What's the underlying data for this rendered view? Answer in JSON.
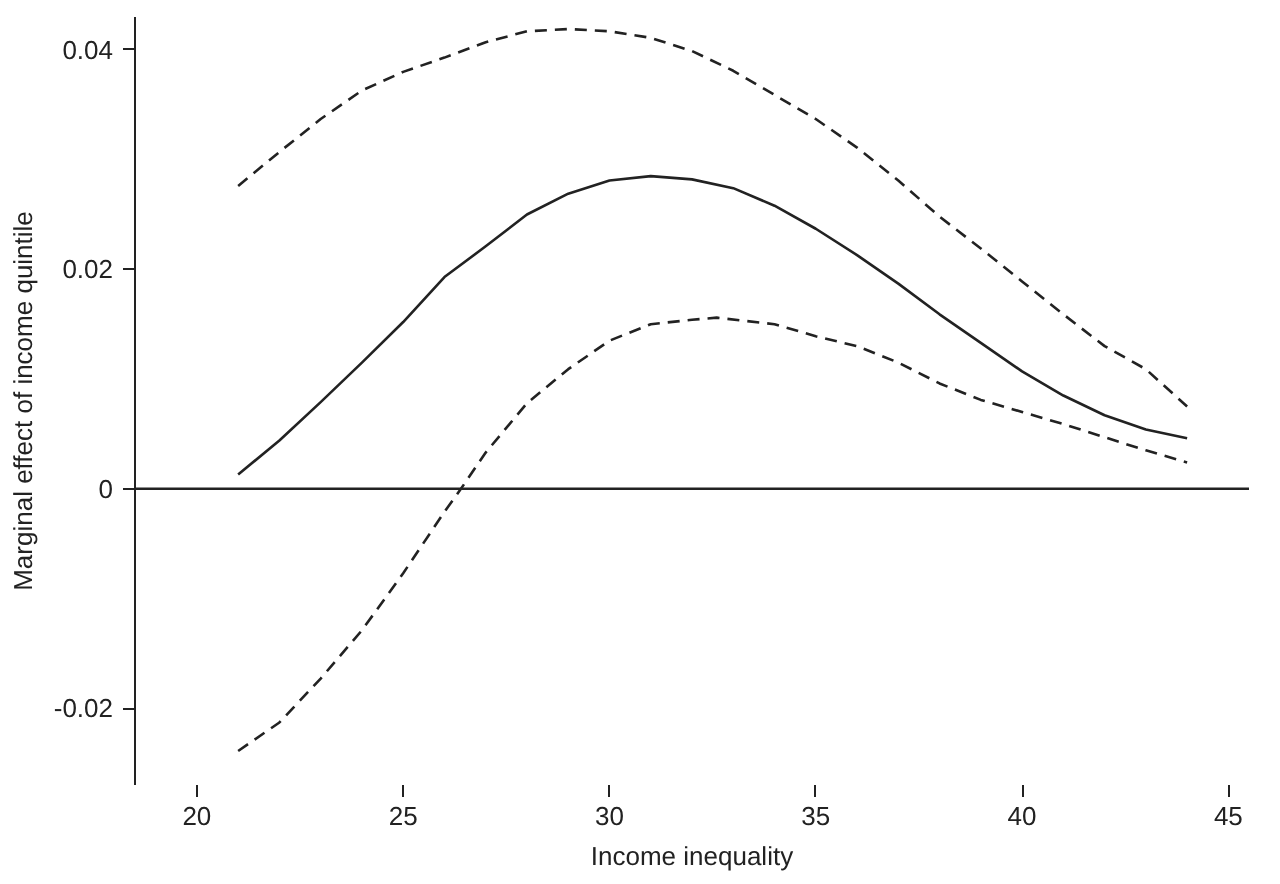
{
  "chart_data": {
    "type": "line",
    "xlabel": "Income inequality",
    "ylabel": "Marginal effect of income quintile",
    "xlim": [
      18.5,
      45.5
    ],
    "ylim": [
      -0.027,
      0.043
    ],
    "xticks": [
      20,
      25,
      30,
      35,
      40,
      45
    ],
    "yticks": [
      -0.02,
      0,
      0.02,
      0.04
    ],
    "grid": false,
    "marker": "none",
    "series": [
      {
        "color": "#222222",
        "line_style": "solid",
        "x": [
          21,
          22,
          23,
          24,
          25,
          26,
          27,
          28,
          29,
          30,
          31,
          32,
          33,
          34,
          35,
          36,
          37,
          38,
          39,
          40,
          41,
          42,
          43,
          44
        ],
        "values": [
          0.0013,
          0.0044,
          0.0079,
          0.0115,
          0.0152,
          0.0193,
          0.0221,
          0.025,
          0.0269,
          0.0281,
          0.0285,
          0.0282,
          0.0274,
          0.0258,
          0.0237,
          0.0213,
          0.0187,
          0.0159,
          0.0133,
          0.0107,
          0.0085,
          0.0067,
          0.0054,
          0.0046
        ]
      },
      {
        "color": "#222222",
        "line_style": "dashed",
        "x": [
          21,
          22,
          23,
          24,
          25,
          26,
          27,
          28,
          29,
          30,
          31,
          32,
          33,
          34,
          35,
          36,
          37,
          38,
          39,
          40,
          41,
          42,
          43,
          44
        ],
        "values": [
          0.0276,
          0.0307,
          0.0337,
          0.0363,
          0.038,
          0.0393,
          0.0407,
          0.0417,
          0.0419,
          0.0417,
          0.0411,
          0.0399,
          0.0381,
          0.0359,
          0.0337,
          0.0311,
          0.0281,
          0.0248,
          0.0219,
          0.0189,
          0.0159,
          0.013,
          0.0109,
          0.0075
        ]
      },
      {
        "color": "#222222",
        "line_style": "dashed",
        "x": [
          21,
          22,
          23,
          24,
          25,
          26,
          26.4,
          27,
          28,
          29,
          30,
          31,
          32,
          32.6,
          34,
          35,
          36,
          37,
          38,
          39,
          40,
          41,
          42,
          43,
          44
        ],
        "values": [
          -0.0239,
          -0.0213,
          -0.0173,
          -0.0129,
          -0.0077,
          -0.0021,
          0,
          0.0033,
          0.0078,
          0.0109,
          0.0135,
          0.015,
          0.0154,
          0.0156,
          0.015,
          0.0139,
          0.013,
          0.0115,
          0.0096,
          0.0081,
          0.007,
          0.0059,
          0.0047,
          0.0035,
          0.0024
        ]
      }
    ],
    "ref_lines": [
      {
        "axis": "y",
        "value": 0,
        "color": "#222222",
        "line_style": "solid"
      }
    ]
  }
}
